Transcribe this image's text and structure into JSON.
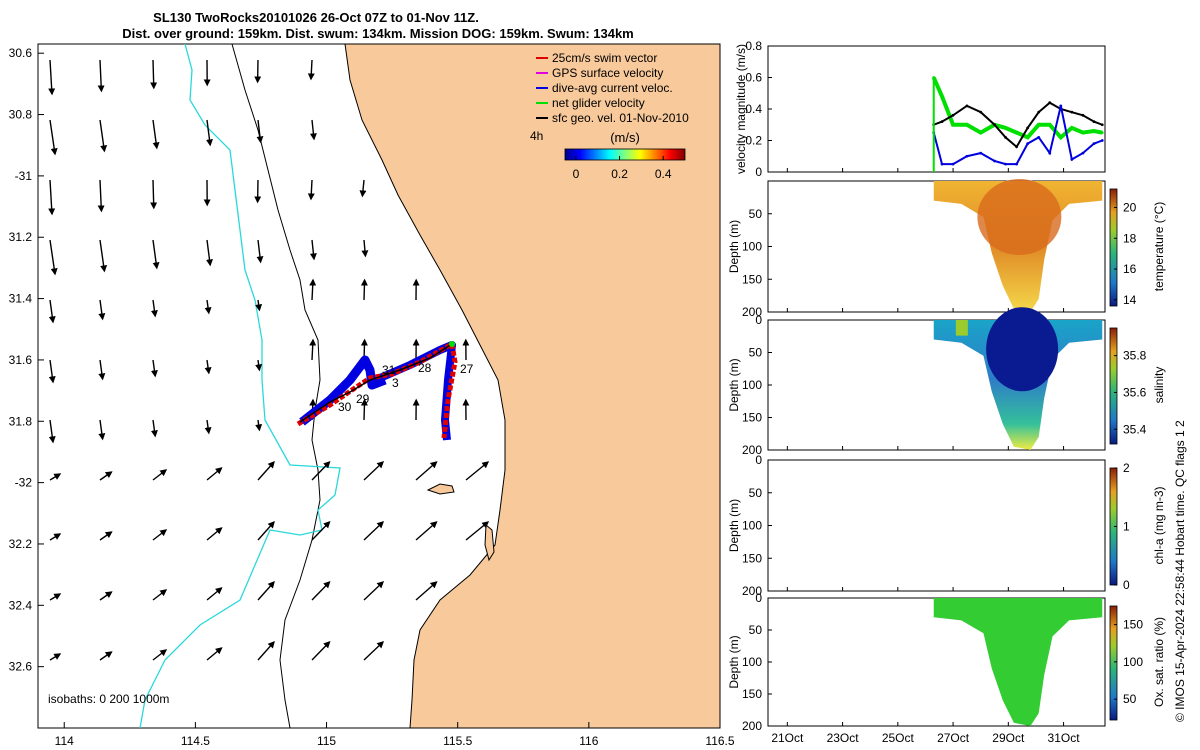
{
  "title": {
    "line1": "SL130 TwoRocks20101026 26-Oct 07Z to 01-Nov 11Z.",
    "line2": "Dist. over ground: 159km. Dist. swum: 134km. Mission DOG: 159km. Swum: 134km"
  },
  "map": {
    "lon_ticks": [
      "114",
      "114.5",
      "115",
      "115.5",
      "116",
      "116.5"
    ],
    "lat_ticks": [
      "30.6",
      "30.8",
      "-31",
      "31.2",
      "31.4",
      "31.6",
      "31.8",
      "-32",
      "32.2",
      "32.4",
      "32.6"
    ],
    "lon_range": [
      113.9,
      116.5
    ],
    "lat_range": [
      -32.8,
      -30.57
    ],
    "isobath_label": "isobaths: 0   200  1000m",
    "legend": [
      {
        "label": "25cm/s swim vector",
        "color": "#e00000"
      },
      {
        "label": "GPS surface velocity",
        "color": "#e000e0"
      },
      {
        "label": "dive-avg current veloc.",
        "color": "#0000e0"
      },
      {
        "label": "net glider velocity",
        "color": "#00e000"
      },
      {
        "label": "sfc geo. vel. 01-Nov-2010",
        "color": "#000000"
      }
    ],
    "colorbar": {
      "units": "(m/s)",
      "ticks": [
        "0",
        "0.2",
        "0.4"
      ],
      "range": [
        -0.05,
        0.5
      ],
      "time_label": "4h"
    },
    "day_labels": [
      "31",
      "3",
      "28",
      "27",
      "30",
      "29"
    ],
    "land_color": "#f8c99b",
    "coast_isobath_color": "#000000",
    "deep_isobath_color": "#2ad8dc"
  },
  "panels": {
    "velocity": {
      "ylabel": "velocity magnitude (m/s)",
      "yticks": [
        "0",
        "0.2",
        "0.4",
        "0.6",
        "0.8"
      ],
      "yrange": [
        0,
        0.8
      ]
    },
    "temperature": {
      "ylabel": "Depth (m)",
      "cblabel": "temperature (°C)",
      "yticks": [
        "50",
        "100",
        "150",
        "200"
      ],
      "cbticks": [
        "14",
        "16",
        "18",
        "20"
      ]
    },
    "salinity": {
      "ylabel": "Depth (m)",
      "cblabel": "salinity",
      "yticks": [
        "0",
        "50",
        "100",
        "150",
        "200"
      ],
      "cbticks": [
        "35.4",
        "35.6",
        "35.8"
      ]
    },
    "chla": {
      "ylabel": "Depth (m)",
      "cblabel": "chl-a (mg m-3)",
      "yticks": [
        "0",
        "50",
        "100",
        "150",
        "200"
      ],
      "cbticks": [
        "0",
        "1",
        "2"
      ]
    },
    "oxygen": {
      "ylabel": "Depth (m)",
      "cblabel": "Ox. sat. ratio (%)",
      "yticks": [
        "0",
        "50",
        "100",
        "150",
        "200"
      ],
      "cbticks": [
        "50",
        "100",
        "150"
      ]
    },
    "time_ticks": [
      "21Oct",
      "23Oct",
      "25Oct",
      "27Oct",
      "29Oct",
      "31Oct"
    ],
    "time_range_days": [
      20.3,
      32.5
    ]
  },
  "credit": "© IMOS 15-Apr-2024 22:58:44 Hobart time. QC flags 1  2",
  "chart_data": [
    {
      "type": "line",
      "title": "velocity magnitude",
      "xlabel": "",
      "ylabel": "velocity magnitude (m/s)",
      "ylim": [
        0,
        0.8
      ],
      "x": [
        26.3,
        26.6,
        27.0,
        27.5,
        28.0,
        28.5,
        28.9,
        29.3,
        29.7,
        30.1,
        30.5,
        30.9,
        31.3,
        31.7,
        32.1,
        32.4
      ],
      "series": [
        {
          "name": "net glider velocity",
          "color": "#00e000",
          "values": [
            0.6,
            0.48,
            0.3,
            0.3,
            0.25,
            0.3,
            0.28,
            0.25,
            0.22,
            0.3,
            0.3,
            0.22,
            0.28,
            0.25,
            0.26,
            0.25
          ]
        },
        {
          "name": "sfc geo. vel.",
          "color": "#000000",
          "values": [
            0.3,
            0.32,
            0.36,
            0.42,
            0.38,
            0.3,
            0.22,
            0.16,
            0.28,
            0.38,
            0.44,
            0.4,
            0.38,
            0.36,
            0.32,
            0.3
          ]
        },
        {
          "name": "dive-avg current veloc.",
          "color": "#0000e0",
          "values": [
            0.25,
            0.05,
            0.05,
            0.1,
            0.12,
            0.07,
            0.05,
            0.05,
            0.18,
            0.22,
            0.12,
            0.42,
            0.08,
            0.12,
            0.18,
            0.2
          ]
        }
      ]
    },
    {
      "type": "heatmap",
      "title": "temperature",
      "ylabel": "Depth (m)",
      "colorbar_label": "temperature (°C)",
      "value_range": [
        14,
        21
      ],
      "surface_value": 19.5,
      "core_value": 21,
      "deep_value": 18.5
    },
    {
      "type": "heatmap",
      "title": "salinity",
      "ylabel": "Depth (m)",
      "colorbar_label": "salinity",
      "value_range": [
        35.3,
        35.95
      ],
      "surface_value": 35.55,
      "core_value": 35.35,
      "deep_value": 35.85
    },
    {
      "type": "heatmap",
      "title": "chl-a",
      "ylabel": "Depth (m)",
      "colorbar_label": "chl-a (mg m-3)",
      "value_range": [
        0,
        2
      ],
      "note": "no data"
    },
    {
      "type": "heatmap",
      "title": "oxygen saturation",
      "ylabel": "Depth (m)",
      "colorbar_label": "Ox. sat. ratio (%)",
      "value_range": [
        20,
        175
      ],
      "surface_value": 115,
      "core_value": 110,
      "deep_value": 105
    }
  ]
}
